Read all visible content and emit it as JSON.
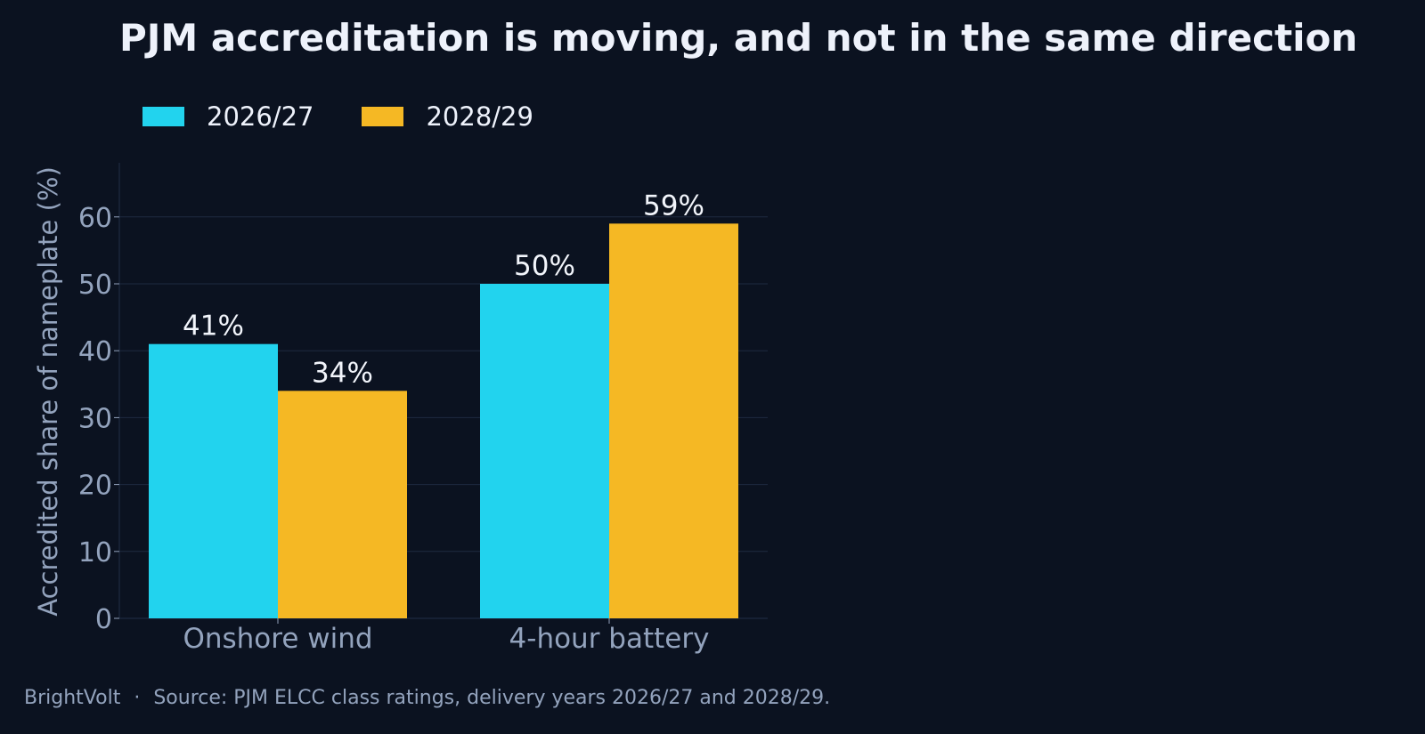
{
  "title": "PJM accreditation is moving, and not in the same direction",
  "footer": {
    "brand": "BrightVolt",
    "separator": "·",
    "source": "Source: PJM ELCC class ratings, delivery years 2026/27 and 2028/29."
  },
  "colors": {
    "background": "#0b1220",
    "series_2026": "#22d3ee",
    "series_2028": "#f5b824",
    "grid": "#1e2a40",
    "tick_text": "#93a3bd",
    "label_text": "#f2f5fb"
  },
  "chart_data": {
    "type": "bar",
    "title": "PJM accreditation is moving, and not in the same direction",
    "xlabel": "",
    "ylabel": "Accredited share of nameplate (%)",
    "categories": [
      "Onshore wind",
      "4-hour battery"
    ],
    "series": [
      {
        "name": "2026/27",
        "values": [
          41,
          50
        ],
        "labels": [
          "41%",
          "50%"
        ],
        "color": "#22d3ee"
      },
      {
        "name": "2028/29",
        "values": [
          34,
          59
        ],
        "labels": [
          "34%",
          "59%"
        ],
        "color": "#f5b824"
      }
    ],
    "ylim": [
      0,
      68
    ],
    "yticks": [
      0,
      10,
      20,
      30,
      40,
      50,
      60
    ],
    "grid": true,
    "legend_position": "top-left"
  }
}
